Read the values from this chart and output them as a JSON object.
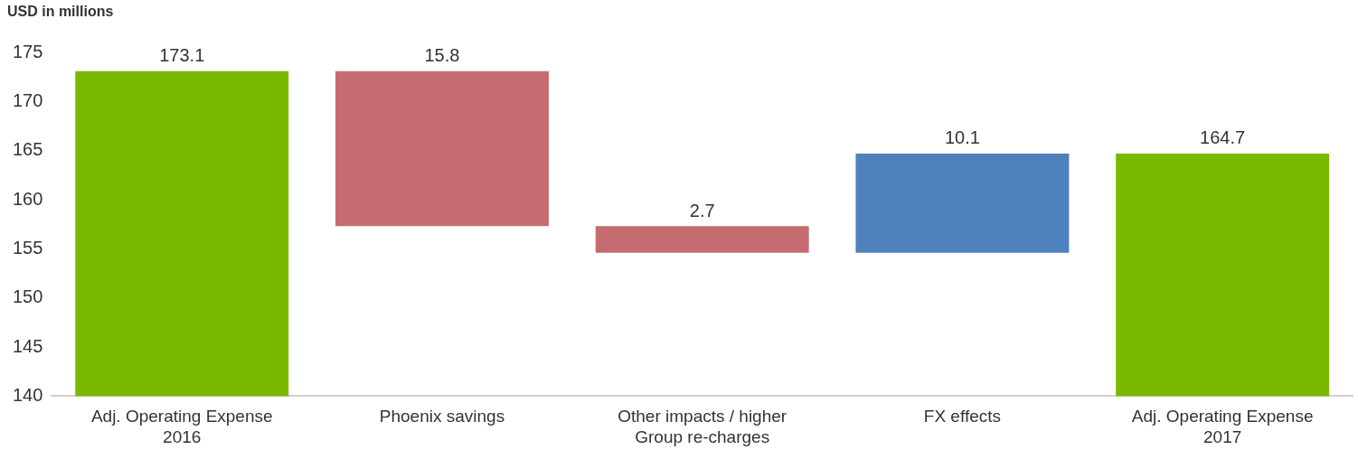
{
  "chart_data": {
    "type": "bar",
    "ylabel": "USD in millions",
    "categories": [
      "Adj. Operating Expense 2016",
      "Phoenix savings",
      "Other impacts / higher Group re-charges",
      "FX effects",
      "Adj. Operating Expense 2017"
    ],
    "values": [
      173.1,
      15.8,
      2.7,
      10.1,
      164.7
    ],
    "base": [
      null,
      157.3,
      154.6,
      154.6,
      null
    ],
    "colors": [
      "#7ab800",
      "#c66b70",
      "#c66b70",
      "#4f81bd",
      "#7ab800"
    ],
    "ylim": [
      140,
      175
    ],
    "yticks": [
      140,
      145,
      150,
      155,
      160,
      165,
      170,
      175
    ],
    "data_labels": true,
    "grid": false,
    "legend": false
  }
}
